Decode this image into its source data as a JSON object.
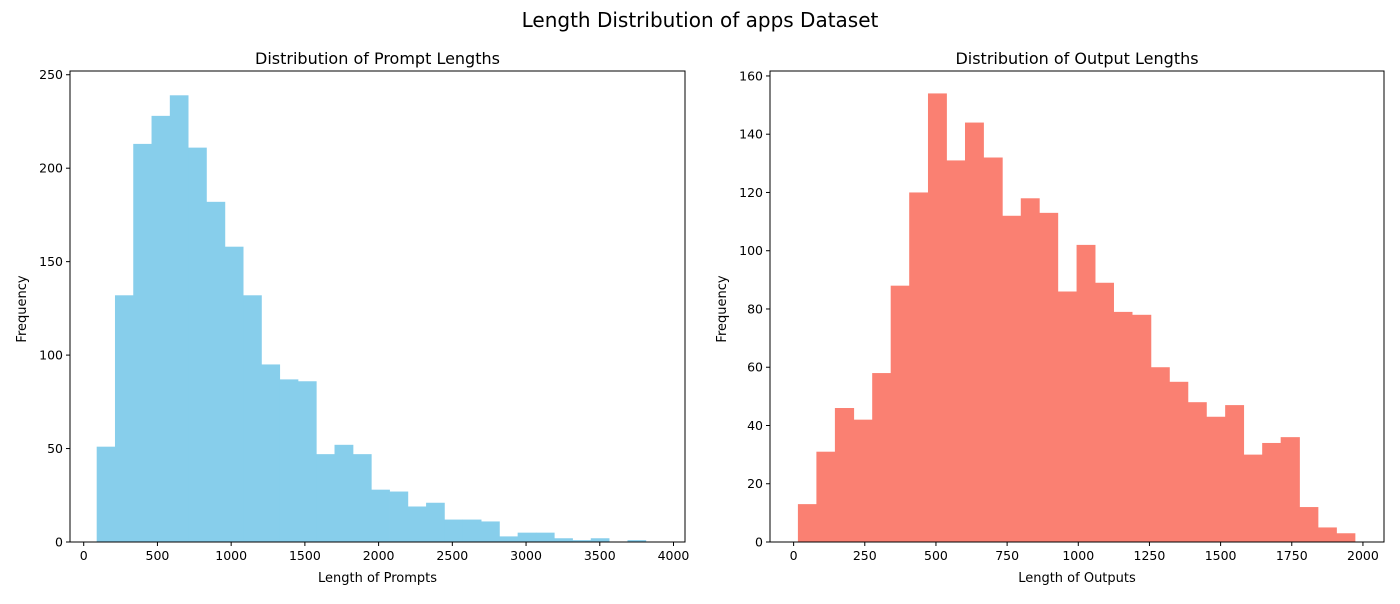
{
  "figure": {
    "title": "Length Distribution of apps Dataset"
  },
  "chart_data": [
    {
      "type": "bar",
      "subtype": "histogram",
      "title": "Distribution of Prompt Lengths",
      "xlabel": "Length of Prompts",
      "ylabel": "Frequency",
      "color": "#87CEEB",
      "xlim": [
        -93,
        4078
      ],
      "ylim": [
        0,
        252
      ],
      "xticks": [
        0,
        500,
        1000,
        1500,
        2000,
        2500,
        3000,
        3500,
        4000
      ],
      "yticks": [
        0,
        50,
        100,
        150,
        200,
        250
      ],
      "bins": [
        {
          "x0": 88,
          "x1": 212,
          "count": 51
        },
        {
          "x0": 212,
          "x1": 336,
          "count": 132
        },
        {
          "x0": 336,
          "x1": 460,
          "count": 213
        },
        {
          "x0": 460,
          "x1": 584,
          "count": 228
        },
        {
          "x0": 584,
          "x1": 708,
          "count": 239
        },
        {
          "x0": 708,
          "x1": 832,
          "count": 211
        },
        {
          "x0": 832,
          "x1": 957,
          "count": 182
        },
        {
          "x0": 957,
          "x1": 1081,
          "count": 158
        },
        {
          "x0": 1081,
          "x1": 1205,
          "count": 132
        },
        {
          "x0": 1205,
          "x1": 1329,
          "count": 95
        },
        {
          "x0": 1329,
          "x1": 1453,
          "count": 87
        },
        {
          "x0": 1453,
          "x1": 1577,
          "count": 86
        },
        {
          "x0": 1577,
          "x1": 1701,
          "count": 47
        },
        {
          "x0": 1701,
          "x1": 1826,
          "count": 52
        },
        {
          "x0": 1826,
          "x1": 1950,
          "count": 47
        },
        {
          "x0": 1950,
          "x1": 2074,
          "count": 28
        },
        {
          "x0": 2074,
          "x1": 2198,
          "count": 27
        },
        {
          "x0": 2198,
          "x1": 2322,
          "count": 19
        },
        {
          "x0": 2322,
          "x1": 2446,
          "count": 21
        },
        {
          "x0": 2446,
          "x1": 2570,
          "count": 12
        },
        {
          "x0": 2570,
          "x1": 2695,
          "count": 12
        },
        {
          "x0": 2695,
          "x1": 2819,
          "count": 11
        },
        {
          "x0": 2819,
          "x1": 2943,
          "count": 3
        },
        {
          "x0": 2943,
          "x1": 3067,
          "count": 5
        },
        {
          "x0": 3067,
          "x1": 3191,
          "count": 5
        },
        {
          "x0": 3191,
          "x1": 3315,
          "count": 2
        },
        {
          "x0": 3315,
          "x1": 3439,
          "count": 1
        },
        {
          "x0": 3439,
          "x1": 3563,
          "count": 2
        },
        {
          "x0": 3563,
          "x1": 3688,
          "count": 0
        },
        {
          "x0": 3688,
          "x1": 3812,
          "count": 1
        }
      ]
    },
    {
      "type": "bar",
      "subtype": "histogram",
      "title": "Distribution of Output Lengths",
      "xlabel": "Length of Outputs",
      "ylabel": "Frequency",
      "color": "#FA8072",
      "xlim": [
        -83,
        2074
      ],
      "ylim": [
        0,
        161.7
      ],
      "xticks": [
        0,
        250,
        500,
        750,
        1000,
        1250,
        1500,
        1750,
        2000
      ],
      "yticks": [
        0,
        20,
        40,
        60,
        80,
        100,
        120,
        140,
        160
      ],
      "bins": [
        {
          "x0": 15,
          "x1": 80,
          "count": 13
        },
        {
          "x0": 80,
          "x1": 145,
          "count": 31
        },
        {
          "x0": 145,
          "x1": 211,
          "count": 46
        },
        {
          "x0": 211,
          "x1": 276,
          "count": 42
        },
        {
          "x0": 276,
          "x1": 341,
          "count": 58
        },
        {
          "x0": 341,
          "x1": 406,
          "count": 88
        },
        {
          "x0": 406,
          "x1": 472,
          "count": 120
        },
        {
          "x0": 472,
          "x1": 537,
          "count": 154
        },
        {
          "x0": 537,
          "x1": 602,
          "count": 131
        },
        {
          "x0": 602,
          "x1": 667,
          "count": 144
        },
        {
          "x0": 667,
          "x1": 733,
          "count": 132
        },
        {
          "x0": 733,
          "x1": 798,
          "count": 112
        },
        {
          "x0": 798,
          "x1": 863,
          "count": 118
        },
        {
          "x0": 863,
          "x1": 928,
          "count": 113
        },
        {
          "x0": 928,
          "x1": 994,
          "count": 86
        },
        {
          "x0": 994,
          "x1": 1059,
          "count": 102
        },
        {
          "x0": 1059,
          "x1": 1124,
          "count": 89
        },
        {
          "x0": 1124,
          "x1": 1189,
          "count": 79
        },
        {
          "x0": 1189,
          "x1": 1255,
          "count": 78
        },
        {
          "x0": 1255,
          "x1": 1320,
          "count": 60
        },
        {
          "x0": 1320,
          "x1": 1385,
          "count": 55
        },
        {
          "x0": 1385,
          "x1": 1450,
          "count": 48
        },
        {
          "x0": 1450,
          "x1": 1516,
          "count": 43
        },
        {
          "x0": 1516,
          "x1": 1581,
          "count": 47
        },
        {
          "x0": 1581,
          "x1": 1646,
          "count": 30
        },
        {
          "x0": 1646,
          "x1": 1711,
          "count": 34
        },
        {
          "x0": 1711,
          "x1": 1777,
          "count": 36
        },
        {
          "x0": 1777,
          "x1": 1842,
          "count": 12
        },
        {
          "x0": 1842,
          "x1": 1907,
          "count": 5
        },
        {
          "x0": 1907,
          "x1": 1972,
          "count": 3
        }
      ]
    }
  ]
}
